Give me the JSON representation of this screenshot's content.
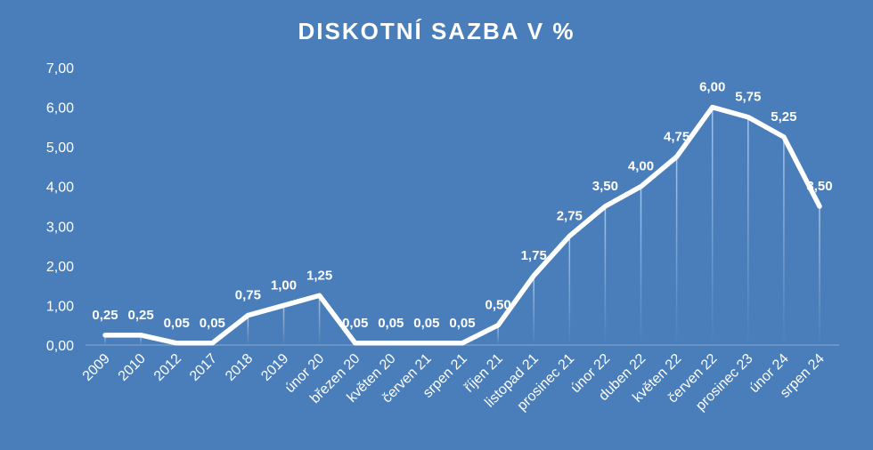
{
  "chart_data": {
    "type": "line",
    "title": "DISKOTNÍ SAZBA V %",
    "xlabel": "",
    "ylabel": "",
    "ylim": [
      0,
      7
    ],
    "y_ticks": [
      "0,00",
      "1,00",
      "2,00",
      "3,00",
      "4,00",
      "5,00",
      "6,00",
      "7,00"
    ],
    "categories": [
      "2009",
      "2010",
      "2012",
      "2017",
      "2018",
      "2019",
      "únor 20",
      "březen 20",
      "květen 20",
      "červen 21",
      "srpen 21",
      "říjen 21",
      "listopad 21",
      "prosinec 21",
      "únor 22",
      "duben 22",
      "květen 22",
      "červen 22",
      "prosinec 23",
      "únor 24",
      "srpen 24"
    ],
    "values": [
      0.25,
      0.25,
      0.05,
      0.05,
      0.75,
      1.0,
      1.25,
      0.05,
      0.05,
      0.05,
      0.05,
      0.5,
      1.75,
      2.75,
      3.5,
      4.0,
      4.75,
      6.0,
      5.75,
      5.25,
      3.5
    ],
    "value_labels": [
      "0,25",
      "0,25",
      "0,05",
      "0,05",
      "0,75",
      "1,00",
      "1,25",
      "0,05",
      "0,05",
      "0,05",
      "0,05",
      "0,50",
      "1,75",
      "2,75",
      "3,50",
      "4,00",
      "4,75",
      "6,00",
      "5,75",
      "5,25",
      "3,50"
    ],
    "grid": false,
    "legend": "none",
    "colors": {
      "background": "#4a7ebb",
      "line": "#ffffff",
      "text": "#ffffff"
    }
  }
}
